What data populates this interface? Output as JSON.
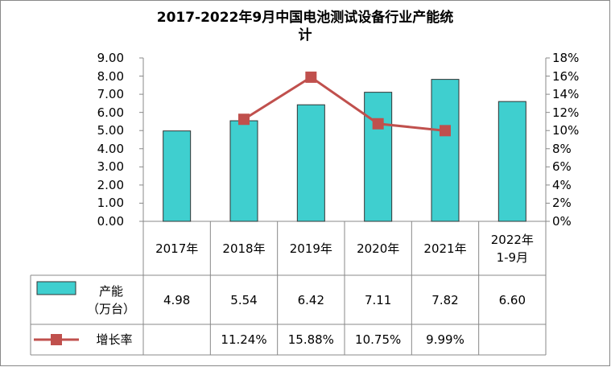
{
  "chart_data": {
    "type": "bar",
    "title": "2017-2022年9月中国电池测试设备行业产能统计",
    "categories": [
      "2017年",
      "2018年",
      "2019年",
      "2020年",
      "2021年",
      "2022年\n1-9月"
    ],
    "series": [
      {
        "name": "产能\n（万台）",
        "type": "bar",
        "color": "#3fcfcf",
        "values": [
          4.98,
          5.54,
          6.42,
          7.11,
          7.82,
          6.6
        ],
        "value_labels": [
          "4.98",
          "5.54",
          "6.42",
          "7.11",
          "7.82",
          "6.60"
        ]
      },
      {
        "name": "增长率",
        "type": "line",
        "axis": "y2",
        "color": "#c0504d",
        "values": [
          null,
          11.24,
          15.88,
          10.75,
          9.99,
          null
        ],
        "value_labels": [
          null,
          "11.24%",
          "15.88%",
          "10.75%",
          "9.99%",
          null
        ]
      }
    ],
    "ylim": [
      0,
      9
    ],
    "yticks": [
      {
        "value": 0,
        "label": "0.00"
      },
      {
        "value": 1,
        "label": "1.00"
      },
      {
        "value": 2,
        "label": "2.00"
      },
      {
        "value": 3,
        "label": "3.00"
      },
      {
        "value": 4,
        "label": "4.00"
      },
      {
        "value": 5,
        "label": "5.00"
      },
      {
        "value": 6,
        "label": "6.00"
      },
      {
        "value": 7,
        "label": "7.00"
      },
      {
        "value": 8,
        "label": "8.00"
      },
      {
        "value": 9,
        "label": "9.00"
      }
    ],
    "y2lim": [
      0,
      18
    ],
    "y2ticks": [
      {
        "value": 0,
        "label": "0%"
      },
      {
        "value": 2,
        "label": "2%"
      },
      {
        "value": 4,
        "label": "4%"
      },
      {
        "value": 6,
        "label": "6%"
      },
      {
        "value": 8,
        "label": "8%"
      },
      {
        "value": 10,
        "label": "10%"
      },
      {
        "value": 12,
        "label": "12%"
      },
      {
        "value": 14,
        "label": "14%"
      },
      {
        "value": 16,
        "label": "16%"
      },
      {
        "value": 18,
        "label": "18%"
      }
    ],
    "grid": false
  }
}
